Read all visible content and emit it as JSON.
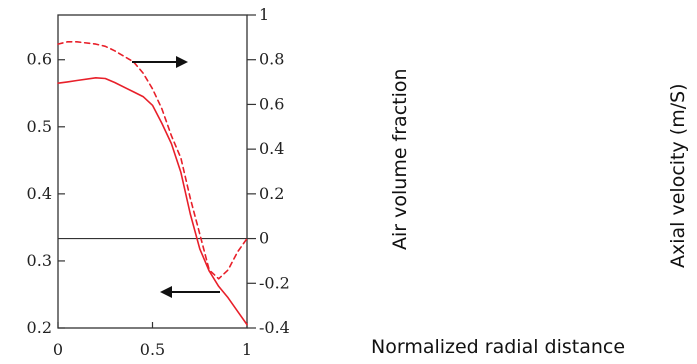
{
  "chart_data": {
    "type": "line",
    "x": [
      0,
      0.05,
      0.1,
      0.2,
      0.25,
      0.3,
      0.4,
      0.45,
      0.5,
      0.55,
      0.6,
      0.65,
      0.7,
      0.75,
      0.8,
      0.85,
      0.9,
      0.95,
      1.0
    ],
    "series": [
      {
        "axis": "left",
        "style": "solid",
        "color": "#e8202a",
        "values": [
          0.565,
          0.567,
          0.569,
          0.573,
          0.572,
          0.566,
          0.552,
          0.545,
          0.532,
          0.505,
          0.475,
          0.432,
          0.37,
          0.318,
          0.285,
          0.262,
          0.245,
          0.225,
          0.205
        ]
      },
      {
        "axis": "right",
        "style": "dashed",
        "color": "#e8202a",
        "values": [
          0.87,
          0.88,
          0.88,
          0.87,
          0.86,
          0.84,
          0.79,
          0.74,
          0.67,
          0.58,
          0.46,
          0.36,
          0.18,
          0.02,
          -0.14,
          -0.18,
          -0.14,
          -0.06,
          0.0
        ]
      }
    ],
    "xlim": [
      0,
      1
    ],
    "ylim_left": [
      0.2,
      0.6667
    ],
    "ylim_right": [
      -0.4,
      1.0
    ],
    "x_ticks": [
      "0",
      "0.5",
      "1"
    ],
    "y_left_ticks": [
      "0.2",
      "0.3",
      "0.4",
      "0.5",
      "0.6"
    ],
    "y_right_ticks": [
      "-0.4",
      "-0.2",
      "0",
      "0.2",
      "0.4",
      "0.6",
      "0.8",
      "1"
    ],
    "y_left_tick_values": [
      0.2,
      0.3,
      0.4,
      0.5,
      0.6
    ],
    "y_right_tick_values": [
      -0.4,
      -0.2,
      0,
      0.2,
      0.4,
      0.6,
      0.8,
      1
    ],
    "x_tick_values": [
      0,
      0.5,
      1
    ],
    "ylabel_left": "Air volume fraction",
    "ylabel_right": "Axial velocity (m/S)",
    "xlabel": "Normalized radial distance",
    "annotations": [
      {
        "type": "arrow",
        "direction": "right"
      },
      {
        "type": "arrow",
        "direction": "left"
      }
    ],
    "zero_line_right": true,
    "grid": false
  }
}
